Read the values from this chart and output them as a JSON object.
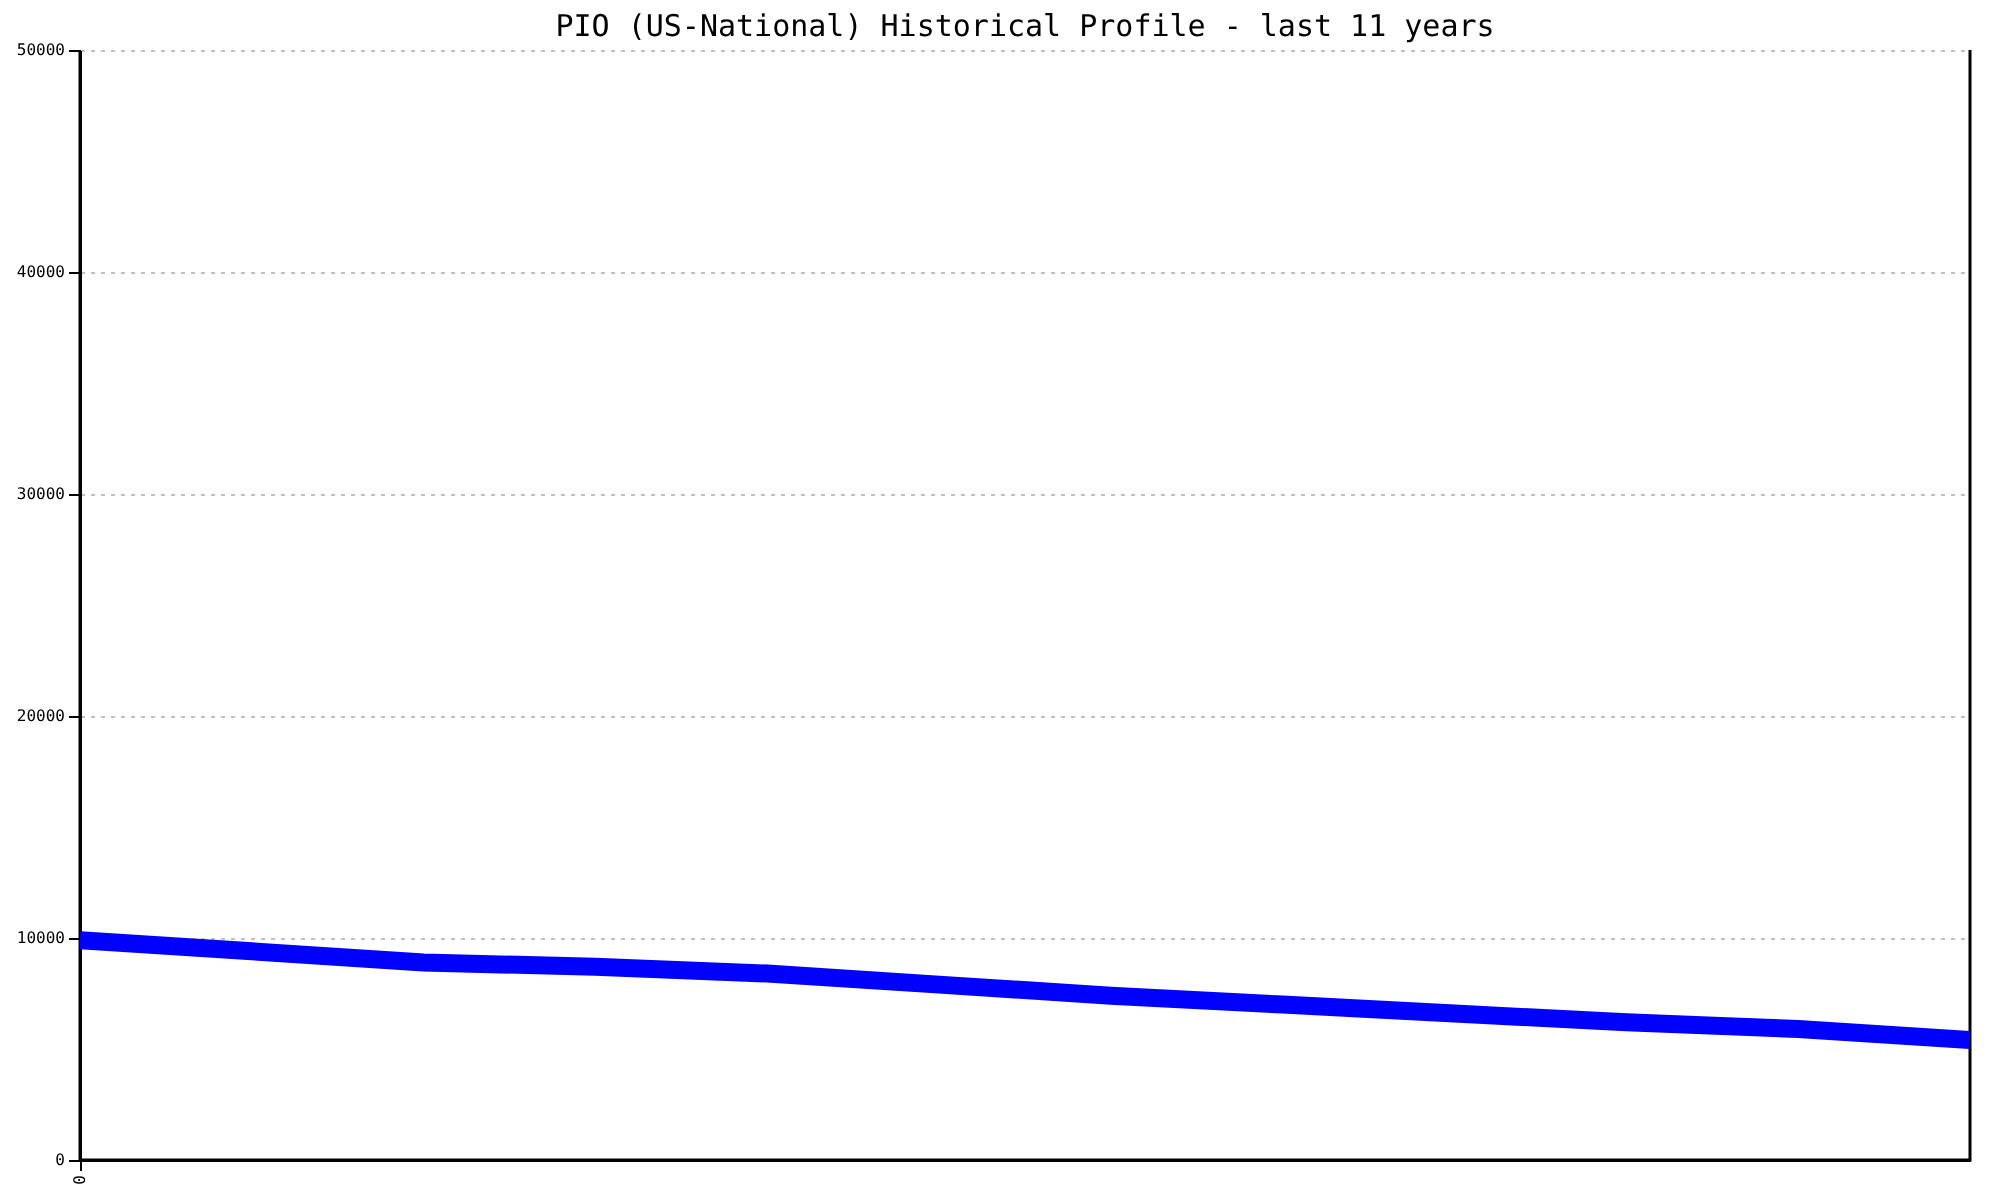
{
  "chart_data": {
    "type": "line",
    "title": "PIO (US-National) Historical Profile - last 11 years",
    "categories": [
      "0",
      null,
      null,
      null,
      null,
      null,
      null,
      null,
      null,
      null,
      null,
      null
    ],
    "series": [
      {
        "color": "#0000ff",
        "values": [
          9900,
          9400,
          8900,
          8700,
          8400,
          7900,
          7400,
          7000,
          6600,
          6200,
          5900,
          5400
        ]
      }
    ],
    "ylim": [
      0,
      50000
    ],
    "yticks": [
      0,
      10000,
      20000,
      30000,
      40000,
      50000
    ],
    "grid": "y",
    "line_style": "solid"
  }
}
